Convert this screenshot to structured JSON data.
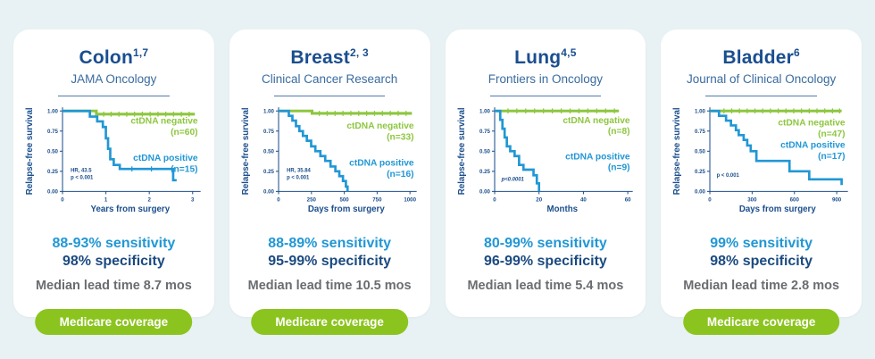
{
  "colors": {
    "bg": "#E8F1F3",
    "card": "#FFFFFF",
    "navy": "#1A4E8F",
    "axis": "#1B4E8C",
    "journal": "#3A6B9F",
    "blue": "#2197D5",
    "green": "#8DC63F",
    "gray": "#6A6D70",
    "button_green": "#8CC41F"
  },
  "cards": [
    {
      "title": "Colon",
      "superscript": "1,7",
      "journal": "JAMA Oncology",
      "stats": {
        "sensitivity": "88-93% sensitivity",
        "specificity": "98% specificity",
        "lead_time": "Median lead time 8.7 mos"
      },
      "button_label": "Medicare coverage",
      "chart_data": {
        "type": "line",
        "title": "",
        "xlabel": "Years from surgery",
        "ylabel": "Relapse-free survival",
        "xlim": [
          0,
          3.12
        ],
        "ylim": [
          0,
          1
        ],
        "xticks": [
          0,
          1,
          2,
          3
        ],
        "ytick_labels": [
          "1.00",
          "0.75",
          "0.50",
          "0.25",
          "0.00"
        ],
        "annotation": {
          "lines": [
            "HR, 43.5",
            "p < 0.001"
          ],
          "pos": [
            0.06,
            0.76
          ],
          "italic": false
        },
        "series": [
          {
            "name": "ctDNA negative",
            "n_label": "(n=60)",
            "color_key": "green",
            "points": [
              [
                0,
                1
              ],
              [
                0.78,
                0.96
              ],
              [
                3.05,
                0.96
              ]
            ],
            "censor_x": [
              0.95,
              1.12,
              1.3,
              1.48,
              1.66,
              1.84,
              2.02,
              2.2,
              2.38,
              2.56,
              2.74,
              2.92
            ],
            "label": {
              "pos": [
                1.0,
                0.16
              ],
              "anchor": "end"
            }
          },
          {
            "name": "ctDNA positive",
            "n_label": "(n=15)",
            "color_key": "blue",
            "points": [
              [
                0,
                1
              ],
              [
                0.55,
                1
              ],
              [
                0.63,
                0.93
              ],
              [
                0.8,
                0.87
              ],
              [
                0.93,
                0.8
              ],
              [
                1.0,
                0.66
              ],
              [
                1.05,
                0.53
              ],
              [
                1.1,
                0.4
              ],
              [
                1.18,
                0.33
              ],
              [
                1.32,
                0.28
              ],
              [
                2.48,
                0.28
              ],
              [
                2.55,
                0.14
              ],
              [
                2.63,
                0.14
              ]
            ],
            "censor_x": [
              1.6,
              2.05
            ],
            "label": {
              "pos": [
                1.0,
                0.62
              ],
              "anchor": "end"
            }
          }
        ]
      }
    },
    {
      "title": "Breast",
      "superscript": "2, 3",
      "journal": "Clinical Cancer Research",
      "stats": {
        "sensitivity": "88-89% sensitivity",
        "specificity": "95-99% specificity",
        "lead_time": "Median lead time 10.5 mos"
      },
      "button_label": "Medicare coverage",
      "chart_data": {
        "type": "line",
        "title": "",
        "xlabel": "Days from surgery",
        "ylabel": "Relapse-free survival",
        "xlim": [
          0,
          1030
        ],
        "ylim": [
          0,
          1
        ],
        "xticks": [
          0,
          250,
          500,
          750,
          1000
        ],
        "ytick_labels": [
          "1.00",
          "0.75",
          "0.50",
          "0.25",
          "0.00"
        ],
        "annotation": {
          "lines": [
            "HR, 35.84",
            "p < 0.001"
          ],
          "pos": [
            0.06,
            0.76
          ],
          "italic": false
        },
        "series": [
          {
            "name": "ctDNA negative",
            "n_label": "(n=33)",
            "color_key": "green",
            "points": [
              [
                0,
                1
              ],
              [
                255,
                0.97
              ],
              [
                1015,
                0.97
              ]
            ],
            "censor_x": [
              310,
              370,
              430,
              490,
              550,
              610,
              670,
              730,
              790,
              850,
              910,
              970
            ],
            "label": {
              "pos": [
                1.0,
                0.22
              ],
              "anchor": "end"
            }
          },
          {
            "name": "ctDNA positive",
            "n_label": "(n=16)",
            "color_key": "blue",
            "points": [
              [
                0,
                1
              ],
              [
                78,
                0.94
              ],
              [
                105,
                0.88
              ],
              [
                132,
                0.81
              ],
              [
                158,
                0.75
              ],
              [
                185,
                0.69
              ],
              [
                215,
                0.63
              ],
              [
                248,
                0.56
              ],
              [
                280,
                0.5
              ],
              [
                318,
                0.44
              ],
              [
                355,
                0.38
              ],
              [
                395,
                0.31
              ],
              [
                432,
                0.25
              ],
              [
                462,
                0.19
              ],
              [
                490,
                0.13
              ],
              [
                512,
                0.06
              ],
              [
                525,
                0
              ]
            ],
            "censor_x": [],
            "label": {
              "pos": [
                1.0,
                0.68
              ],
              "anchor": "end"
            }
          }
        ]
      }
    },
    {
      "title": "Lung",
      "superscript": "4,5",
      "journal": "Frontiers in Oncology",
      "stats": {
        "sensitivity": "80-99% sensitivity",
        "specificity": "96-99% specificity",
        "lead_time": "Median lead time 5.4 mos"
      },
      "button_label": null,
      "chart_data": {
        "type": "line",
        "title": "",
        "xlabel": "Months",
        "ylabel": "Relapse-free survival",
        "xlim": [
          0,
          61
        ],
        "ylim": [
          0,
          1
        ],
        "xticks": [
          0,
          20,
          40,
          60
        ],
        "ytick_labels": [
          "1.00",
          "0.75",
          "0.50",
          "0.25",
          "0.00"
        ],
        "annotation": {
          "lines": [
            "p<0.0001"
          ],
          "pos": [
            0.05,
            0.87
          ],
          "italic": true
        },
        "series": [
          {
            "name": "ctDNA negative",
            "n_label": "(n=8)",
            "color_key": "green",
            "points": [
              [
                0,
                1
              ],
              [
                56,
                1
              ]
            ],
            "censor_x": [
              6,
              10,
              14,
              18,
              22,
              26,
              30,
              34,
              38,
              42,
              46,
              50,
              54
            ],
            "label": {
              "pos": [
                1.0,
                0.15
              ],
              "anchor": "end"
            }
          },
          {
            "name": "ctDNA positive",
            "n_label": "(n=9)",
            "color_key": "blue",
            "points": [
              [
                0,
                1
              ],
              [
                2.5,
                0.89
              ],
              [
                3.5,
                0.78
              ],
              [
                4.5,
                0.67
              ],
              [
                5.5,
                0.56
              ],
              [
                7,
                0.5
              ],
              [
                9,
                0.44
              ],
              [
                11,
                0.33
              ],
              [
                13,
                0.27
              ],
              [
                17.5,
                0.2
              ],
              [
                19,
                0.1
              ],
              [
                20,
                0
              ]
            ],
            "censor_x": [],
            "label": {
              "pos": [
                1.0,
                0.6
              ],
              "anchor": "end"
            }
          }
        ]
      }
    },
    {
      "title": "Bladder",
      "superscript": "6",
      "journal": "Journal of Clinical Oncology",
      "stats": {
        "sensitivity": "99% sensitivity",
        "specificity": "98% specificity",
        "lead_time": "Median lead time 2.8 mos"
      },
      "button_label": "Medicare coverage",
      "chart_data": {
        "type": "line",
        "title": "",
        "xlabel": "Days from surgery",
        "ylabel": "Relapse-free survival",
        "xlim": [
          0,
          960
        ],
        "ylim": [
          0,
          1
        ],
        "xticks": [
          0,
          300,
          600,
          900
        ],
        "ytick_labels": [
          "1.00",
          "0.75",
          "0.50",
          "0.25",
          "0.00"
        ],
        "annotation": {
          "lines": [
            "p < 0.001"
          ],
          "pos": [
            0.05,
            0.82
          ],
          "italic": false
        },
        "series": [
          {
            "name": "ctDNA negative",
            "n_label": "(n=47)",
            "color_key": "green",
            "points": [
              [
                0,
                1
              ],
              [
                935,
                1
              ]
            ],
            "censor_x": [
              100,
              155,
              210,
              265,
              320,
              375,
              430,
              485,
              540,
              595,
              650,
              705,
              760,
              815,
              870,
              920
            ],
            "label": {
              "pos": [
                1.0,
                0.18
              ],
              "anchor": "end"
            }
          },
          {
            "name": "ctDNA positive",
            "n_label": "(n=17)",
            "color_key": "blue",
            "points": [
              [
                0,
                1
              ],
              [
                65,
                0.94
              ],
              [
                115,
                0.88
              ],
              [
                150,
                0.82
              ],
              [
                185,
                0.76
              ],
              [
                205,
                0.7
              ],
              [
                240,
                0.64
              ],
              [
                265,
                0.57
              ],
              [
                290,
                0.5
              ],
              [
                330,
                0.38
              ],
              [
                540,
                0.38
              ],
              [
                565,
                0.25
              ],
              [
                680,
                0.25
              ],
              [
                705,
                0.15
              ],
              [
                925,
                0.15
              ],
              [
                935,
                0.08
              ]
            ],
            "censor_x": [],
            "label": {
              "pos": [
                1.0,
                0.46
              ],
              "anchor": "end"
            }
          }
        ]
      }
    }
  ]
}
